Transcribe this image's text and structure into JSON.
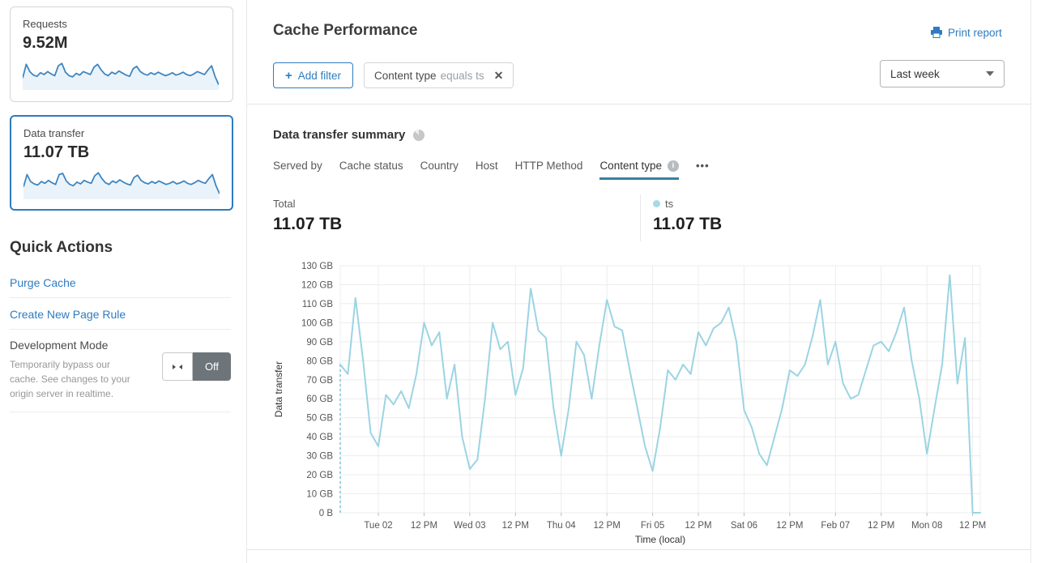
{
  "colors": {
    "accent_blue": "#2f7bbf",
    "chart_line": "#9bd4e3",
    "legend_dot": "#a7d9e6",
    "tab_underline": "#39809e",
    "spark_line": "#3e86c0",
    "spark_fill": "#eaf3fa",
    "grid": "#ececec",
    "tick_text": "#555555",
    "toggle_off_bg": "#6e757a"
  },
  "icons": {
    "info_glyph": "i",
    "plus_glyph": "+",
    "close_glyph": "✕",
    "more_glyph": "•••"
  },
  "sidebar": {
    "cards": [
      {
        "label": "Requests",
        "value": "9.52M",
        "selected": false,
        "spark": [
          38,
          85,
          60,
          48,
          44,
          56,
          50,
          60,
          52,
          46,
          80,
          88,
          58,
          46,
          42,
          54,
          48,
          60,
          55,
          50,
          75,
          85,
          66,
          52,
          46,
          58,
          52,
          62,
          55,
          48,
          44,
          70,
          78,
          60,
          52,
          48,
          56,
          50,
          58,
          52,
          46,
          50,
          56,
          48,
          52,
          58,
          50,
          46,
          52,
          60,
          55,
          50,
          66,
          80,
          42,
          15
        ]
      },
      {
        "label": "Data transfer",
        "value": "11.07 TB",
        "selected": true,
        "spark": [
          40,
          82,
          58,
          50,
          46,
          58,
          52,
          62,
          54,
          48,
          82,
          86,
          60,
          48,
          44,
          56,
          50,
          62,
          56,
          52,
          78,
          88,
          68,
          54,
          48,
          60,
          54,
          64,
          56,
          50,
          46,
          72,
          80,
          62,
          54,
          50,
          58,
          52,
          60,
          54,
          48,
          52,
          58,
          50,
          54,
          60,
          52,
          48,
          54,
          62,
          56,
          52,
          68,
          82,
          44,
          16
        ]
      }
    ],
    "quick_actions": {
      "title": "Quick Actions",
      "links": [
        "Purge Cache",
        "Create New Page Rule"
      ],
      "dev_mode": {
        "title": "Development Mode",
        "description": "Temporarily bypass our cache. See changes to your origin server in realtime.",
        "toggle_label": "Off"
      }
    }
  },
  "header": {
    "title": "Cache Performance",
    "print_label": "Print report",
    "add_filter_label": "Add filter",
    "filter_chip": {
      "field": "Content type",
      "condition": "equals ts"
    },
    "time_range": "Last week"
  },
  "summary": {
    "title": "Data transfer summary",
    "tabs": [
      {
        "label": "Served by"
      },
      {
        "label": "Cache status"
      },
      {
        "label": "Country"
      },
      {
        "label": "Host"
      },
      {
        "label": "HTTP Method"
      },
      {
        "label": "Content type"
      }
    ],
    "total_label": "Total",
    "total_value": "11.07 TB",
    "series_label": "ts",
    "series_value": "11.07 TB"
  },
  "chart_data": {
    "type": "line",
    "title": "Data transfer summary",
    "xlabel": "Time (local)",
    "ylabel": "Data transfer",
    "unit": "GB",
    "ylim": [
      0,
      130
    ],
    "grid": true,
    "legend_position": "top-right",
    "y_tick_labels": [
      "0 B",
      "10 GB",
      "20 GB",
      "30 GB",
      "40 GB",
      "50 GB",
      "60 GB",
      "70 GB",
      "80 GB",
      "90 GB",
      "100 GB",
      "110 GB",
      "120 GB",
      "130 GB"
    ],
    "x_tick_labels": [
      "Tue 02",
      "12 PM",
      "Wed 03",
      "12 PM",
      "Thu 04",
      "12 PM",
      "Fri 05",
      "12 PM",
      "Sat 06",
      "12 PM",
      "Feb 07",
      "12 PM",
      "Mon 08",
      "12 PM"
    ],
    "x_tick_hours": [
      10,
      22,
      34,
      46,
      58,
      70,
      82,
      94,
      106,
      118,
      130,
      142,
      154,
      166
    ],
    "span_hours": 168,
    "step_hours": 2,
    "start_dashed_connector": true,
    "legend": [
      {
        "label": "ts",
        "color": "#a7d9e6"
      }
    ],
    "series": [
      {
        "name": "ts",
        "values_gb": [
          78,
          73,
          113,
          80,
          42,
          35,
          62,
          57,
          64,
          55,
          73,
          100,
          88,
          95,
          60,
          78,
          40,
          23,
          28,
          60,
          100,
          86,
          90,
          62,
          76,
          118,
          96,
          92,
          55,
          30,
          55,
          90,
          83,
          60,
          88,
          112,
          98,
          96,
          75,
          55,
          35,
          22,
          45,
          75,
          70,
          78,
          73,
          95,
          88,
          97,
          100,
          108,
          90,
          54,
          45,
          31,
          25,
          40,
          55,
          75,
          72,
          78,
          93,
          112,
          78,
          90,
          68,
          60,
          62,
          75,
          88,
          90,
          85,
          95,
          108,
          80,
          60,
          31,
          55,
          78,
          125,
          68,
          92,
          0,
          0
        ]
      }
    ]
  }
}
